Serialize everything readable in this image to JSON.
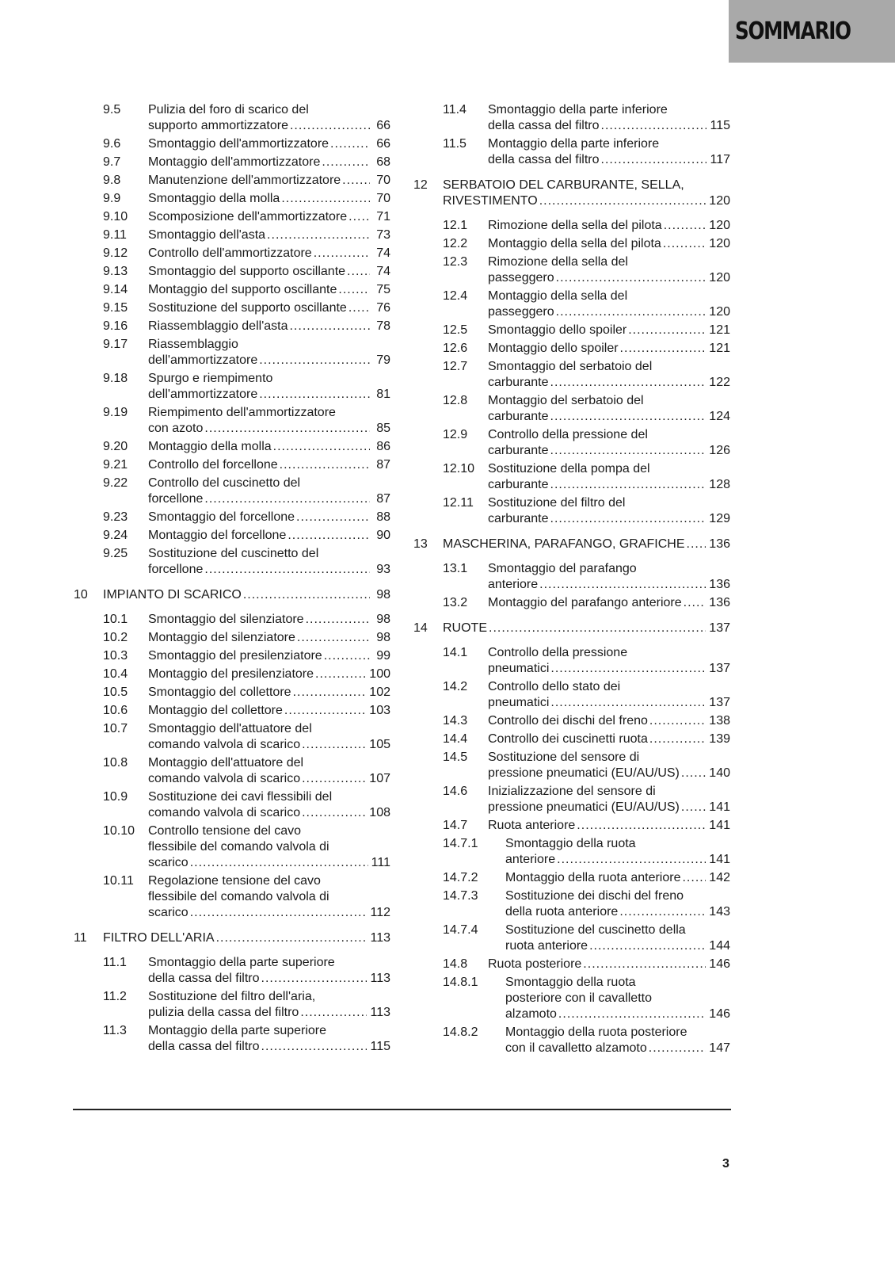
{
  "header": {
    "title": "SOMMARIO"
  },
  "left": [
    {
      "num": "9.5",
      "level": 1,
      "lines": [
        "Pulizia del foro di scarico del",
        "supporto ammortizzatore"
      ],
      "page": "66"
    },
    {
      "num": "9.6",
      "level": 1,
      "lines": [
        "Smontaggio dell'ammortizzatore"
      ],
      "page": "66"
    },
    {
      "num": "9.7",
      "level": 1,
      "lines": [
        "Montaggio dell'ammortizzatore"
      ],
      "page": "68"
    },
    {
      "num": "9.8",
      "level": 1,
      "lines": [
        "Manutenzione dell'ammortizzatore"
      ],
      "page": "70"
    },
    {
      "num": "9.9",
      "level": 1,
      "lines": [
        "Smontaggio della molla"
      ],
      "page": "70"
    },
    {
      "num": "9.10",
      "level": 1,
      "lines": [
        "Scomposizione dell'ammortizzatore"
      ],
      "page": "71"
    },
    {
      "num": "9.11",
      "level": 1,
      "lines": [
        "Smontaggio dell'asta"
      ],
      "page": "73"
    },
    {
      "num": "9.12",
      "level": 1,
      "lines": [
        "Controllo dell'ammortizzatore"
      ],
      "page": "74"
    },
    {
      "num": "9.13",
      "level": 1,
      "lines": [
        "Smontaggio del supporto oscillante"
      ],
      "page": "74"
    },
    {
      "num": "9.14",
      "level": 1,
      "lines": [
        "Montaggio del supporto oscillante"
      ],
      "page": "75"
    },
    {
      "num": "9.15",
      "level": 1,
      "lines": [
        "Sostituzione del supporto oscillante"
      ],
      "page": "76"
    },
    {
      "num": "9.16",
      "level": 1,
      "lines": [
        "Riassemblaggio dell'asta"
      ],
      "page": "78"
    },
    {
      "num": "9.17",
      "level": 1,
      "lines": [
        "Riassemblaggio",
        "dell'ammortizzatore"
      ],
      "page": "79"
    },
    {
      "num": "9.18",
      "level": 1,
      "lines": [
        "Spurgo e riempimento",
        "dell'ammortizzatore"
      ],
      "page": "81"
    },
    {
      "num": "9.19",
      "level": 1,
      "lines": [
        "Riempimento dell'ammortizzatore",
        "con azoto"
      ],
      "page": "85"
    },
    {
      "num": "9.20",
      "level": 1,
      "lines": [
        "Montaggio della molla"
      ],
      "page": "86"
    },
    {
      "num": "9.21",
      "level": 1,
      "lines": [
        "Controllo del forcellone"
      ],
      "page": "87"
    },
    {
      "num": "9.22",
      "level": 1,
      "lines": [
        "Controllo del cuscinetto del",
        "forcellone"
      ],
      "page": "87"
    },
    {
      "num": "9.23",
      "level": 1,
      "lines": [
        "Smontaggio del forcellone"
      ],
      "page": "88"
    },
    {
      "num": "9.24",
      "level": 1,
      "lines": [
        "Montaggio del forcellone"
      ],
      "page": "90"
    },
    {
      "num": "9.25",
      "level": 1,
      "lines": [
        "Sostituzione del cuscinetto del",
        "forcellone"
      ],
      "page": "93"
    },
    {
      "num": "10",
      "level": 0,
      "lines": [
        "IMPIANTO DI SCARICO"
      ],
      "page": "98"
    },
    {
      "num": "10.1",
      "level": 1,
      "lines": [
        "Smontaggio del silenziatore"
      ],
      "page": "98"
    },
    {
      "num": "10.2",
      "level": 1,
      "lines": [
        "Montaggio del silenziatore"
      ],
      "page": "98"
    },
    {
      "num": "10.3",
      "level": 1,
      "lines": [
        "Smontaggio del presilenziatore"
      ],
      "page": "99"
    },
    {
      "num": "10.4",
      "level": 1,
      "lines": [
        "Montaggio del presilenziatore"
      ],
      "page": "100"
    },
    {
      "num": "10.5",
      "level": 1,
      "lines": [
        "Smontaggio del collettore"
      ],
      "page": "102"
    },
    {
      "num": "10.6",
      "level": 1,
      "lines": [
        "Montaggio del collettore"
      ],
      "page": "103"
    },
    {
      "num": "10.7",
      "level": 1,
      "lines": [
        "Smontaggio dell'attuatore del",
        "comando valvola di scarico"
      ],
      "page": "105"
    },
    {
      "num": "10.8",
      "level": 1,
      "lines": [
        "Montaggio dell'attuatore del",
        "comando valvola di scarico"
      ],
      "page": "107"
    },
    {
      "num": "10.9",
      "level": 1,
      "lines": [
        "Sostituzione dei cavi flessibili del",
        "comando valvola di scarico"
      ],
      "page": "108"
    },
    {
      "num": "10.10",
      "level": 1,
      "lines": [
        "Controllo tensione del cavo",
        "flessibile del comando valvola di",
        "scarico"
      ],
      "page": "111"
    },
    {
      "num": "10.11",
      "level": 1,
      "lines": [
        "Regolazione tensione del cavo",
        "flessibile del comando valvola di",
        "scarico"
      ],
      "page": "112"
    },
    {
      "num": "11",
      "level": 0,
      "lines": [
        "FILTRO DELL'ARIA"
      ],
      "page": "113"
    },
    {
      "num": "11.1",
      "level": 1,
      "lines": [
        "Smontaggio della parte superiore",
        "della cassa del filtro"
      ],
      "page": "113"
    },
    {
      "num": "11.2",
      "level": 1,
      "lines": [
        "Sostituzione del filtro dell'aria,",
        "pulizia della cassa del filtro"
      ],
      "page": "113"
    },
    {
      "num": "11.3",
      "level": 1,
      "lines": [
        "Montaggio della parte superiore",
        "della cassa del filtro"
      ],
      "page": "115"
    }
  ],
  "right": [
    {
      "num": "11.4",
      "level": 1,
      "lines": [
        "Smontaggio della parte inferiore",
        "della cassa del filtro"
      ],
      "page": "115"
    },
    {
      "num": "11.5",
      "level": 1,
      "lines": [
        "Montaggio della parte inferiore",
        "della cassa del filtro"
      ],
      "page": "117"
    },
    {
      "num": "12",
      "level": 0,
      "lines": [
        "SERBATOIO DEL CARBURANTE, SELLA,",
        "RIVESTIMENTO"
      ],
      "page": "120"
    },
    {
      "num": "12.1",
      "level": 1,
      "lines": [
        "Rimozione della sella del pilota"
      ],
      "page": "120"
    },
    {
      "num": "12.2",
      "level": 1,
      "lines": [
        "Montaggio della sella del pilota"
      ],
      "page": "120"
    },
    {
      "num": "12.3",
      "level": 1,
      "lines": [
        "Rimozione della sella del",
        "passeggero"
      ],
      "page": "120"
    },
    {
      "num": "12.4",
      "level": 1,
      "lines": [
        "Montaggio della sella del",
        "passeggero"
      ],
      "page": "120"
    },
    {
      "num": "12.5",
      "level": 1,
      "lines": [
        "Smontaggio dello spoiler"
      ],
      "page": "121"
    },
    {
      "num": "12.6",
      "level": 1,
      "lines": [
        "Montaggio dello spoiler"
      ],
      "page": "121"
    },
    {
      "num": "12.7",
      "level": 1,
      "lines": [
        "Smontaggio del serbatoio del",
        "carburante"
      ],
      "page": "122"
    },
    {
      "num": "12.8",
      "level": 1,
      "lines": [
        "Montaggio del serbatoio del",
        "carburante"
      ],
      "page": "124"
    },
    {
      "num": "12.9",
      "level": 1,
      "lines": [
        "Controllo della pressione del",
        "carburante"
      ],
      "page": "126"
    },
    {
      "num": "12.10",
      "level": 1,
      "lines": [
        "Sostituzione della pompa del",
        "carburante"
      ],
      "page": "128"
    },
    {
      "num": "12.11",
      "level": 1,
      "lines": [
        "Sostituzione del filtro del",
        "carburante"
      ],
      "page": "129"
    },
    {
      "num": "13",
      "level": 0,
      "lines": [
        "MASCHERINA, PARAFANGO, GRAFICHE"
      ],
      "page": "136"
    },
    {
      "num": "13.1",
      "level": 1,
      "lines": [
        "Smontaggio del parafango",
        "anteriore"
      ],
      "page": "136"
    },
    {
      "num": "13.2",
      "level": 1,
      "lines": [
        "Montaggio del parafango anteriore"
      ],
      "page": "136"
    },
    {
      "num": "14",
      "level": 0,
      "lines": [
        "RUOTE"
      ],
      "page": "137"
    },
    {
      "num": "14.1",
      "level": 1,
      "lines": [
        "Controllo della pressione",
        "pneumatici"
      ],
      "page": "137"
    },
    {
      "num": "14.2",
      "level": 1,
      "lines": [
        "Controllo dello stato dei",
        "pneumatici"
      ],
      "page": "137"
    },
    {
      "num": "14.3",
      "level": 1,
      "lines": [
        "Controllo dei dischi del freno"
      ],
      "page": "138"
    },
    {
      "num": "14.4",
      "level": 1,
      "lines": [
        "Controllo dei cuscinetti ruota"
      ],
      "page": "139"
    },
    {
      "num": "14.5",
      "level": 1,
      "lines": [
        "Sostituzione del sensore di",
        "pressione pneumatici (EU/AU/US)"
      ],
      "page": "140"
    },
    {
      "num": "14.6",
      "level": 1,
      "lines": [
        "Inizializzazione del sensore di",
        "pressione pneumatici (EU/AU/US)"
      ],
      "page": "141"
    },
    {
      "num": "14.7",
      "level": 1,
      "lines": [
        "Ruota anteriore"
      ],
      "page": "141"
    },
    {
      "num": "14.7.1",
      "level": 2,
      "lines": [
        "Smontaggio della ruota",
        "anteriore"
      ],
      "page": "141"
    },
    {
      "num": "14.7.2",
      "level": 2,
      "lines": [
        "Montaggio della ruota anteriore"
      ],
      "page": "142"
    },
    {
      "num": "14.7.3",
      "level": 2,
      "lines": [
        "Sostituzione dei dischi del freno",
        "della ruota anteriore"
      ],
      "page": "143"
    },
    {
      "num": "14.7.4",
      "level": 2,
      "lines": [
        "Sostituzione del cuscinetto della",
        "ruota anteriore"
      ],
      "page": "144"
    },
    {
      "num": "14.8",
      "level": 1,
      "lines": [
        "Ruota posteriore"
      ],
      "page": "146"
    },
    {
      "num": "14.8.1",
      "level": 2,
      "lines": [
        "Smontaggio della ruota",
        "posteriore con il cavalletto",
        "alzamoto"
      ],
      "page": "146"
    },
    {
      "num": "14.8.2",
      "level": 2,
      "lines": [
        "Montaggio della ruota posteriore",
        "con il cavalletto alzamoto"
      ],
      "page": "147"
    }
  ],
  "footer": {
    "page_number": "3"
  }
}
